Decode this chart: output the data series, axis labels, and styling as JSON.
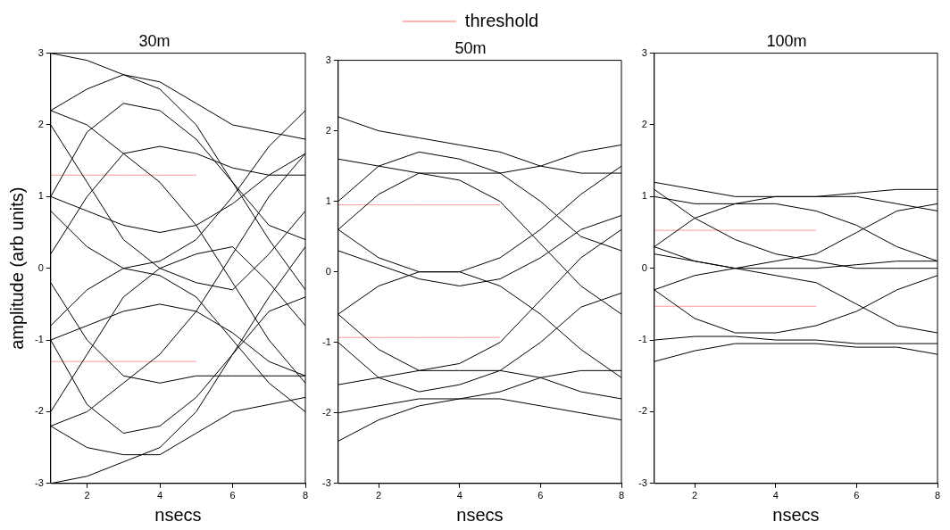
{
  "chart_data": [
    {
      "type": "line",
      "title": "30m",
      "xlabel": "nsecs",
      "ylabel": "amplitude (arb units)",
      "x": [
        1,
        2,
        3,
        4,
        5,
        6,
        7,
        8
      ],
      "xlim": [
        1,
        8
      ],
      "xticks": [
        2,
        4,
        6,
        8
      ],
      "ylim": [
        -3,
        3
      ],
      "yticks": [
        -3,
        -2,
        -1,
        0,
        1,
        2,
        3
      ],
      "grid": false,
      "legend": false,
      "marker": "none",
      "line_style": "solid",
      "series": [
        {
          "color": "#000000",
          "values": [
            3.0,
            2.9,
            2.7,
            2.5,
            2.0,
            1.2,
            0.4,
            -0.3
          ]
        },
        {
          "color": "#000000",
          "values": [
            2.2,
            2.5,
            2.7,
            2.6,
            2.3,
            2.0,
            1.9,
            1.8
          ]
        },
        {
          "color": "#000000",
          "values": [
            1.0,
            1.9,
            2.3,
            2.2,
            1.8,
            1.2,
            0.6,
            0.4
          ]
        },
        {
          "color": "#000000",
          "values": [
            0.2,
            1.0,
            1.6,
            1.7,
            1.6,
            1.4,
            1.3,
            1.3
          ]
        },
        {
          "color": "#000000",
          "values": [
            1.0,
            0.8,
            0.6,
            0.5,
            0.6,
            0.9,
            1.3,
            1.6
          ]
        },
        {
          "color": "#000000",
          "values": [
            -0.8,
            -0.3,
            0.0,
            0.1,
            0.4,
            1.0,
            1.7,
            2.2
          ]
        },
        {
          "color": "#000000",
          "values": [
            0.8,
            0.3,
            0.0,
            -0.1,
            -0.4,
            -1.0,
            -1.6,
            -2.0
          ]
        },
        {
          "color": "#000000",
          "values": [
            -1.0,
            -0.8,
            -0.6,
            -0.5,
            -0.6,
            -0.9,
            -1.3,
            -1.5
          ]
        },
        {
          "color": "#000000",
          "values": [
            -0.2,
            -1.0,
            -1.5,
            -1.6,
            -1.5,
            -1.5,
            -1.5,
            -1.5
          ]
        },
        {
          "color": "#000000",
          "values": [
            -1.0,
            -1.9,
            -2.3,
            -2.2,
            -1.8,
            -1.2,
            -0.6,
            -0.4
          ]
        },
        {
          "color": "#000000",
          "values": [
            -2.2,
            -2.5,
            -2.6,
            -2.6,
            -2.3,
            -2.0,
            -1.9,
            -1.8
          ]
        },
        {
          "color": "#000000",
          "values": [
            -3.0,
            -2.9,
            -2.7,
            -2.5,
            -2.0,
            -1.2,
            -0.4,
            0.3
          ]
        },
        {
          "color": "#000000",
          "values": [
            2.0,
            1.2,
            0.4,
            0.0,
            -0.2,
            -0.3,
            0.2,
            0.8
          ]
        },
        {
          "color": "#000000",
          "values": [
            -2.0,
            -1.2,
            -0.4,
            0.0,
            0.2,
            0.3,
            -0.2,
            -0.8
          ]
        },
        {
          "color": "#000000",
          "values": [
            2.2,
            2.0,
            1.6,
            1.2,
            0.6,
            -0.2,
            -1.0,
            -1.6
          ]
        },
        {
          "color": "#000000",
          "values": [
            -2.2,
            -2.0,
            -1.6,
            -1.2,
            -0.6,
            0.2,
            1.0,
            1.6
          ]
        },
        {
          "color": "#ff9999",
          "values": [
            1.3,
            1.3,
            1.3,
            1.3,
            1.3,
            null,
            null,
            null
          ]
        },
        {
          "color": "#ff9999",
          "values": [
            -1.3,
            -1.3,
            -1.3,
            -1.3,
            -1.3,
            null,
            null,
            null
          ]
        }
      ]
    },
    {
      "type": "line",
      "title": "50m",
      "xlabel": "nsecs",
      "x": [
        1,
        2,
        3,
        4,
        5,
        6,
        7,
        8
      ],
      "xlim": [
        1,
        8
      ],
      "xticks": [
        2,
        4,
        6,
        8
      ],
      "ylim": [
        -3,
        3
      ],
      "yticks": [
        -3,
        -2,
        -1,
        0,
        1,
        2,
        3
      ],
      "grid": false,
      "legend": "top",
      "marker": "none",
      "line_style": "solid",
      "series": [
        {
          "color": "#000000",
          "values": [
            2.2,
            2.0,
            1.9,
            1.8,
            1.7,
            1.5,
            1.4,
            1.4
          ]
        },
        {
          "color": "#000000",
          "values": [
            1.0,
            1.5,
            1.7,
            1.6,
            1.4,
            1.0,
            0.5,
            0.3
          ]
        },
        {
          "color": "#000000",
          "values": [
            0.6,
            1.1,
            1.4,
            1.4,
            1.4,
            1.5,
            1.7,
            1.8
          ]
        },
        {
          "color": "#000000",
          "values": [
            1.6,
            1.5,
            1.4,
            1.3,
            1.0,
            0.4,
            -0.2,
            -0.6
          ]
        },
        {
          "color": "#000000",
          "values": [
            0.6,
            0.2,
            0.0,
            0.0,
            0.2,
            0.6,
            1.1,
            1.5
          ]
        },
        {
          "color": "#000000",
          "values": [
            -0.6,
            -0.2,
            0.0,
            0.0,
            -0.2,
            -0.6,
            -1.1,
            -1.5
          ]
        },
        {
          "color": "#000000",
          "values": [
            0.3,
            0.1,
            -0.1,
            -0.2,
            -0.1,
            0.2,
            0.6,
            0.8
          ]
        },
        {
          "color": "#000000",
          "values": [
            -1.6,
            -1.5,
            -1.4,
            -1.3,
            -1.0,
            -0.4,
            0.2,
            0.6
          ]
        },
        {
          "color": "#000000",
          "values": [
            -0.6,
            -1.1,
            -1.4,
            -1.4,
            -1.4,
            -1.5,
            -1.7,
            -1.8
          ]
        },
        {
          "color": "#000000",
          "values": [
            -1.0,
            -1.5,
            -1.7,
            -1.6,
            -1.4,
            -1.0,
            -0.5,
            -0.3
          ]
        },
        {
          "color": "#000000",
          "values": [
            -2.4,
            -2.1,
            -1.9,
            -1.8,
            -1.7,
            -1.5,
            -1.4,
            -1.4
          ]
        },
        {
          "color": "#000000",
          "values": [
            -2.0,
            -1.9,
            -1.8,
            -1.8,
            -1.8,
            -1.9,
            -2.0,
            -2.1
          ]
        },
        {
          "name": "threshold",
          "color": "#ff9999",
          "values": [
            0.95,
            0.95,
            0.95,
            0.95,
            0.95,
            null,
            null,
            null
          ]
        },
        {
          "color": "#ff9999",
          "values": [
            -0.93,
            -0.93,
            -0.93,
            -0.93,
            -0.93,
            null,
            null,
            null
          ]
        }
      ]
    },
    {
      "type": "line",
      "title": "100m",
      "xlabel": "nsecs",
      "x": [
        1,
        2,
        3,
        4,
        5,
        6,
        7,
        8
      ],
      "xlim": [
        1,
        8
      ],
      "xticks": [
        2,
        4,
        6,
        8
      ],
      "ylim": [
        -3,
        3
      ],
      "yticks": [
        -3,
        -2,
        -1,
        0,
        1,
        2,
        3
      ],
      "grid": false,
      "legend": false,
      "marker": "none",
      "line_style": "solid",
      "series": [
        {
          "color": "#000000",
          "values": [
            1.2,
            1.1,
            1.0,
            1.0,
            1.0,
            1.05,
            1.1,
            1.1
          ]
        },
        {
          "color": "#000000",
          "values": [
            0.3,
            0.7,
            0.9,
            0.9,
            0.8,
            0.6,
            0.3,
            0.1
          ]
        },
        {
          "color": "#000000",
          "values": [
            1.1,
            0.7,
            0.4,
            0.2,
            0.1,
            0.0,
            0.0,
            0.0
          ]
        },
        {
          "color": "#000000",
          "values": [
            -0.3,
            -0.1,
            0.0,
            0.1,
            0.2,
            0.5,
            0.8,
            0.9
          ]
        },
        {
          "color": "#000000",
          "values": [
            0.3,
            0.1,
            0.0,
            -0.1,
            -0.2,
            -0.5,
            -0.8,
            -0.9
          ]
        },
        {
          "color": "#000000",
          "values": [
            0.2,
            0.1,
            0.0,
            0.0,
            0.0,
            0.05,
            0.1,
            0.1
          ]
        },
        {
          "color": "#000000",
          "values": [
            -0.3,
            -0.7,
            -0.9,
            -0.9,
            -0.8,
            -0.6,
            -0.3,
            -0.1
          ]
        },
        {
          "color": "#000000",
          "values": [
            -1.3,
            -1.15,
            -1.05,
            -1.05,
            -1.05,
            -1.1,
            -1.1,
            -1.2
          ]
        },
        {
          "color": "#000000",
          "values": [
            1.0,
            0.9,
            0.9,
            1.0,
            1.0,
            1.0,
            0.9,
            0.8
          ]
        },
        {
          "color": "#000000",
          "values": [
            -1.0,
            -0.95,
            -0.95,
            -1.0,
            -1.0,
            -1.05,
            -1.05,
            -1.05
          ]
        },
        {
          "color": "#ff9999",
          "values": [
            0.53,
            0.53,
            0.53,
            0.53,
            0.53,
            null,
            null,
            null
          ]
        },
        {
          "color": "#ff9999",
          "values": [
            -0.53,
            -0.53,
            -0.53,
            -0.53,
            -0.53,
            null,
            null,
            null
          ]
        }
      ]
    }
  ]
}
